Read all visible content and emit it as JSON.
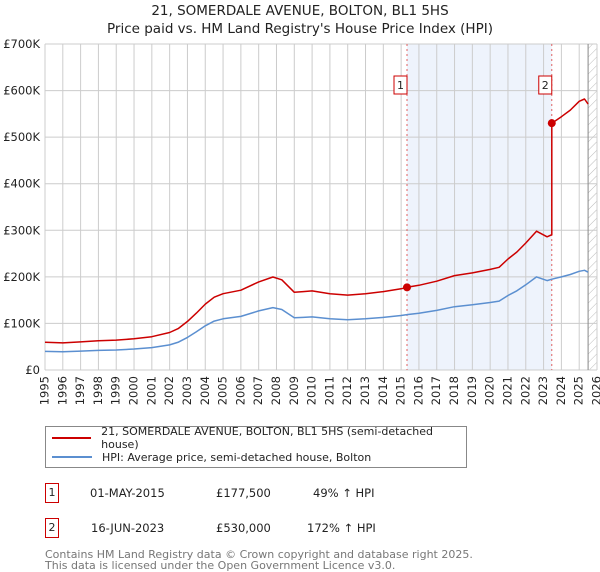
{
  "title": "21, SOMERDALE AVENUE, BOLTON, BL1 5HS",
  "subtitle": "Price paid vs. HM Land Registry's House Price Index (HPI)",
  "colors": {
    "property": "#cc0000",
    "hpi": "#5b8fd0",
    "shade": "#eef3fc",
    "marker_line": "#e06060"
  },
  "chart_data": {
    "type": "line",
    "title": "21, SOMERDALE AVENUE, BOLTON, BL1 5HS",
    "subtitle": "Price paid vs. HM Land Registry's House Price Index (HPI)",
    "xlim": [
      1995,
      2026
    ],
    "ylim": [
      0,
      700000
    ],
    "x_ticks": [
      1995,
      1996,
      1997,
      1998,
      1999,
      2000,
      2001,
      2002,
      2003,
      2004,
      2005,
      2006,
      2007,
      2008,
      2009,
      2010,
      2011,
      2012,
      2013,
      2014,
      2015,
      2016,
      2017,
      2018,
      2019,
      2020,
      2021,
      2022,
      2023,
      2024,
      2025,
      2026
    ],
    "y_ticks": [
      0,
      100000,
      200000,
      300000,
      400000,
      500000,
      600000,
      700000
    ],
    "y_tick_labels": [
      "£0",
      "£100K",
      "£200K",
      "£300K",
      "£400K",
      "£500K",
      "£600K",
      "£700K"
    ],
    "grid": true,
    "legend_position": "bottom",
    "shaded_range": [
      2015.33,
      2023.46
    ],
    "forecast_hatch_from": 2025.5,
    "series": [
      {
        "name": "21, SOMERDALE AVENUE, BOLTON, BL1 5HS (semi-detached house)",
        "x": [
          1995,
          1996,
          1997,
          1998,
          1999,
          2000,
          2001,
          2002,
          2002.5,
          2003,
          2003.5,
          2004,
          2004.5,
          2005,
          2006,
          2007,
          2007.8,
          2008.3,
          2009,
          2009.5,
          2010,
          2011,
          2012,
          2013,
          2014,
          2015,
          2015.33,
          2016,
          2017,
          2018,
          2019,
          2020,
          2020.5,
          2021,
          2021.5,
          2022,
          2022.6,
          2023.2,
          2023.46,
          2023.46,
          2024,
          2024.5,
          2025,
          2025.3,
          2025.5
        ],
        "y": [
          59600,
          58100,
          60300,
          62600,
          64100,
          67000,
          71500,
          80500,
          89400,
          104300,
          122200,
          141500,
          156400,
          163900,
          171300,
          189200,
          199700,
          193700,
          166900,
          168400,
          169900,
          163900,
          160900,
          163900,
          168400,
          174300,
          177500,
          181800,
          190700,
          202600,
          208600,
          216000,
          220500,
          238400,
          253300,
          272700,
          298000,
          286100,
          290500,
          530000,
          544000,
          558000,
          577000,
          582000,
          571000
        ]
      },
      {
        "name": "HPI: Average price, semi-detached house, Bolton",
        "x": [
          1995,
          1996,
          1997,
          1998,
          1999,
          2000,
          2001,
          2002,
          2002.5,
          2003,
          2003.5,
          2004,
          2004.5,
          2005,
          2006,
          2007,
          2007.8,
          2008.3,
          2009,
          2009.5,
          2010,
          2011,
          2012,
          2013,
          2014,
          2015,
          2015.33,
          2016,
          2017,
          2018,
          2019,
          2020,
          2020.5,
          2021,
          2021.5,
          2022,
          2022.6,
          2023.2,
          2023.46,
          2024,
          2024.5,
          2025,
          2025.3,
          2025.5
        ],
        "y": [
          40000,
          39000,
          40500,
          42000,
          43000,
          45000,
          48000,
          54000,
          60000,
          70000,
          82000,
          95000,
          105000,
          110000,
          115000,
          127000,
          134000,
          130000,
          112000,
          113000,
          114000,
          110000,
          108000,
          110000,
          113000,
          117000,
          119000,
          122000,
          128000,
          136000,
          140000,
          145000,
          148000,
          160000,
          170000,
          183000,
          200000,
          192000,
          195000,
          200000,
          205000,
          212000,
          214000,
          210000
        ]
      }
    ],
    "sales": [
      {
        "id": "1",
        "x": 2015.33,
        "y": 177500
      },
      {
        "id": "2",
        "x": 2023.46,
        "y": 530000
      }
    ]
  },
  "legend": {
    "property": "21, SOMERDALE AVENUE, BOLTON, BL1 5HS (semi-detached house)",
    "hpi": "HPI: Average price, semi-detached house, Bolton"
  },
  "sales_table": [
    {
      "id": "1",
      "date": "01-MAY-2015",
      "price": "£177,500",
      "hpi": "49% ↑ HPI"
    },
    {
      "id": "2",
      "date": "16-JUN-2023",
      "price": "£530,000",
      "hpi": "172% ↑ HPI"
    }
  ],
  "footer": {
    "line1": "Contains HM Land Registry data © Crown copyright and database right 2025.",
    "line2": "This data is licensed under the Open Government Licence v3.0."
  }
}
